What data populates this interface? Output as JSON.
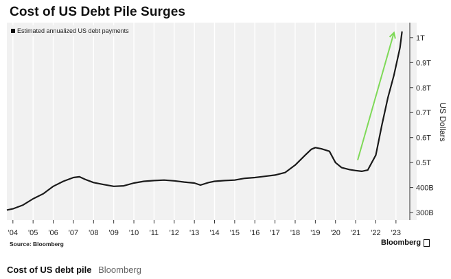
{
  "chart_data": {
    "type": "line",
    "title": "Cost of US Debt Pile Surges",
    "ylabel": "US Dollars",
    "series": [
      {
        "name": "Estimated annualized US debt payments",
        "color": "#1a1a1a",
        "points": [
          [
            2003.7,
            310
          ],
          [
            2004.0,
            315
          ],
          [
            2004.5,
            330
          ],
          [
            2005.0,
            355
          ],
          [
            2005.5,
            375
          ],
          [
            2006.0,
            405
          ],
          [
            2006.5,
            425
          ],
          [
            2007.0,
            440
          ],
          [
            2007.3,
            443
          ],
          [
            2007.6,
            432
          ],
          [
            2008.0,
            420
          ],
          [
            2008.5,
            412
          ],
          [
            2009.0,
            405
          ],
          [
            2009.5,
            407
          ],
          [
            2010.0,
            418
          ],
          [
            2010.5,
            425
          ],
          [
            2011.0,
            428
          ],
          [
            2011.5,
            430
          ],
          [
            2012.0,
            427
          ],
          [
            2012.5,
            422
          ],
          [
            2013.0,
            418
          ],
          [
            2013.3,
            410
          ],
          [
            2013.7,
            420
          ],
          [
            2014.0,
            425
          ],
          [
            2014.5,
            428
          ],
          [
            2015.0,
            430
          ],
          [
            2015.5,
            437
          ],
          [
            2016.0,
            440
          ],
          [
            2016.5,
            445
          ],
          [
            2017.0,
            450
          ],
          [
            2017.5,
            460
          ],
          [
            2018.0,
            490
          ],
          [
            2018.5,
            530
          ],
          [
            2018.8,
            553
          ],
          [
            2019.0,
            560
          ],
          [
            2019.3,
            555
          ],
          [
            2019.7,
            545
          ],
          [
            2020.0,
            500
          ],
          [
            2020.3,
            480
          ],
          [
            2020.7,
            472
          ],
          [
            2021.0,
            468
          ],
          [
            2021.3,
            465
          ],
          [
            2021.6,
            470
          ],
          [
            2022.0,
            530
          ],
          [
            2022.3,
            650
          ],
          [
            2022.6,
            760
          ],
          [
            2022.9,
            850
          ],
          [
            2023.2,
            960
          ],
          [
            2023.3,
            1025
          ]
        ]
      }
    ],
    "arrow": {
      "color": "#7ed957",
      "from": [
        2021.1,
        510
      ],
      "to": [
        2022.9,
        1020
      ]
    },
    "xlim": [
      2003.7,
      2023.55
    ],
    "ylim": [
      270,
      1060
    ],
    "x_ticks": [
      {
        "x": 2004,
        "label": "'04"
      },
      {
        "x": 2005,
        "label": "'05"
      },
      {
        "x": 2006,
        "label": "'06"
      },
      {
        "x": 2007,
        "label": "'07"
      },
      {
        "x": 2008,
        "label": "'08"
      },
      {
        "x": 2009,
        "label": "'09"
      },
      {
        "x": 2010,
        "label": "'10"
      },
      {
        "x": 2011,
        "label": "'11"
      },
      {
        "x": 2012,
        "label": "'12"
      },
      {
        "x": 2013,
        "label": "'13"
      },
      {
        "x": 2014,
        "label": "'14"
      },
      {
        "x": 2015,
        "label": "'15"
      },
      {
        "x": 2016,
        "label": "'16"
      },
      {
        "x": 2017,
        "label": "'17"
      },
      {
        "x": 2018,
        "label": "'18"
      },
      {
        "x": 2019,
        "label": "'19"
      },
      {
        "x": 2020,
        "label": "'20"
      },
      {
        "x": 2021,
        "label": "'21"
      },
      {
        "x": 2022,
        "label": "'22"
      },
      {
        "x": 2023,
        "label": "'23"
      }
    ],
    "y_ticks": [
      {
        "y": 300,
        "label": "300B"
      },
      {
        "y": 400,
        "label": "400B"
      },
      {
        "y": 500,
        "label": "0.5T"
      },
      {
        "y": 600,
        "label": "0.6T"
      },
      {
        "y": 700,
        "label": "0.7T"
      },
      {
        "y": 800,
        "label": "0.8T"
      },
      {
        "y": 900,
        "label": "0.9T"
      },
      {
        "y": 1000,
        "label": "1T"
      }
    ],
    "grid": {
      "vertical": true,
      "horizontal": false
    },
    "legend": "top-left"
  },
  "source_note": "Source: Bloomberg",
  "brand": "Bloomberg",
  "caption": {
    "title": "Cost of US debt pile",
    "source": "Bloomberg"
  },
  "colors": {
    "panel_bg": "#f1f1f1",
    "line": "#1a1a1a",
    "arrow": "#7ed957",
    "grid": "#ffffff"
  }
}
